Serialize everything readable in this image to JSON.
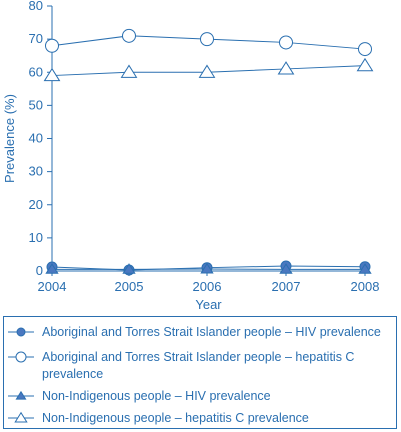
{
  "colors": {
    "axis": "#2a6fb0",
    "series": "#2a6fb0",
    "marker_fill": "#4a78c0",
    "legend_border": "#2a6fb0"
  },
  "chart_data": {
    "type": "line",
    "title": "",
    "xlabel": "Year",
    "ylabel": "Prevalence (%)",
    "x": [
      "2004",
      "2005",
      "2006",
      "2007",
      "2008"
    ],
    "ylim": [
      0,
      80
    ],
    "yticks": [
      "0",
      "10",
      "20",
      "30",
      "40",
      "50",
      "60",
      "70",
      "80"
    ],
    "grid": false,
    "legend_placement": "bottom",
    "series": [
      {
        "name": "Aboriginal and Torres Strait Islander people – HIV prevalence",
        "marker": "filled-circle",
        "values": [
          1.2,
          0.3,
          1.0,
          1.5,
          1.3
        ]
      },
      {
        "name": "Aboriginal and Torres Strait Islander people – hepatitis C prevalence",
        "marker": "open-circle",
        "values": [
          68,
          71,
          70,
          69,
          67
        ]
      },
      {
        "name": "Non-Indigenous people – HIV prevalence",
        "marker": "filled-triangle",
        "values": [
          0.5,
          0.5,
          0.6,
          0.5,
          0.5
        ]
      },
      {
        "name": "Non-Indigenous people – hepatitis C prevalence",
        "marker": "open-triangle",
        "values": [
          59,
          60,
          60,
          61,
          62
        ]
      }
    ]
  }
}
